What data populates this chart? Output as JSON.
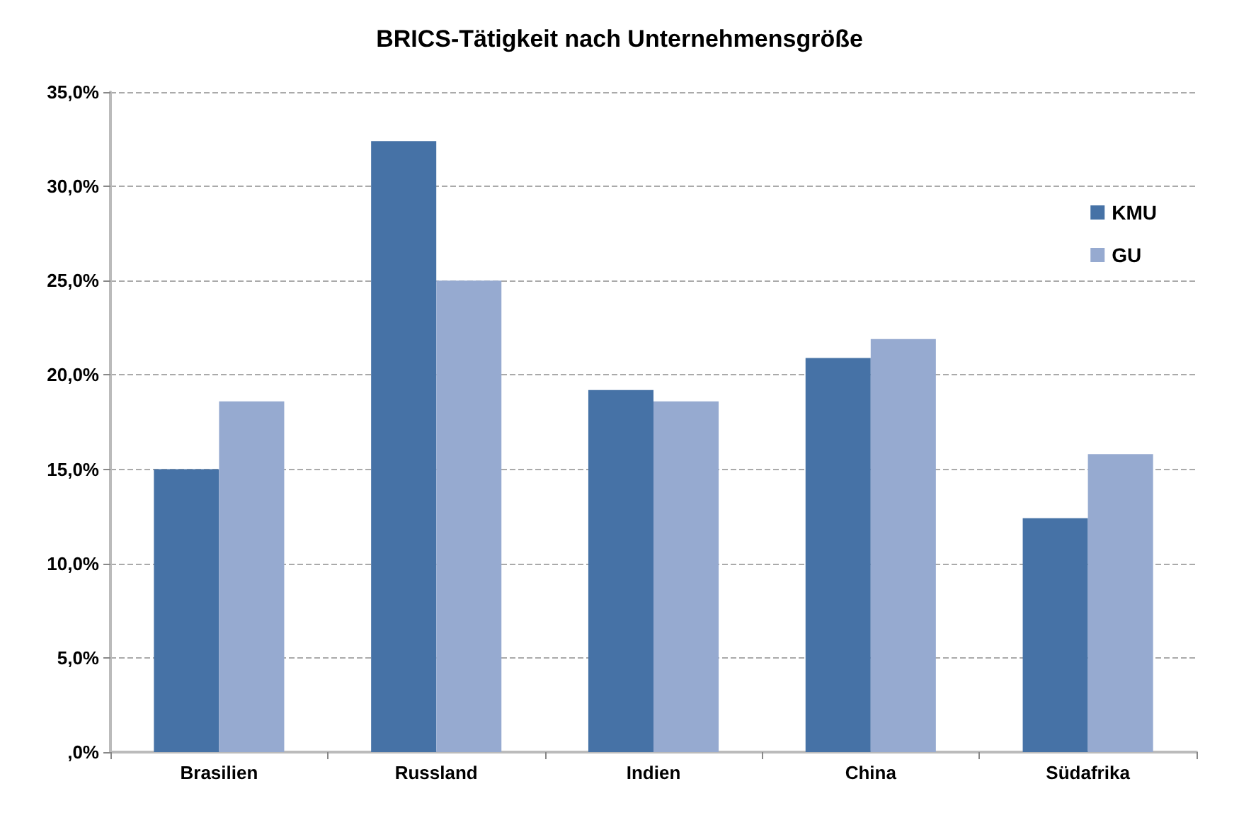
{
  "chart_data": {
    "type": "bar",
    "title": "BRICS-Tätigkeit nach Unternehmensgröße",
    "categories": [
      "Brasilien",
      "Russland",
      "Indien",
      "China",
      "Südafrika"
    ],
    "series": [
      {
        "name": "KMU",
        "color": "#4672a6",
        "values": [
          15.0,
          32.4,
          19.2,
          20.9,
          12.4
        ]
      },
      {
        "name": "GU",
        "color": "#96aad0",
        "values": [
          18.6,
          25.0,
          18.6,
          21.9,
          15.8
        ]
      }
    ],
    "ylim": [
      0,
      35
    ],
    "yticks": [
      {
        "value": 0,
        "label": ",0%"
      },
      {
        "value": 5,
        "label": "5,0%"
      },
      {
        "value": 10,
        "label": "10,0%"
      },
      {
        "value": 15,
        "label": "15,0%"
      },
      {
        "value": 20,
        "label": "20,0%"
      },
      {
        "value": 25,
        "label": "25,0%"
      },
      {
        "value": 30,
        "label": "30,0%"
      },
      {
        "value": 35,
        "label": "35,0%"
      }
    ],
    "grid": "y",
    "legend": "top right"
  }
}
